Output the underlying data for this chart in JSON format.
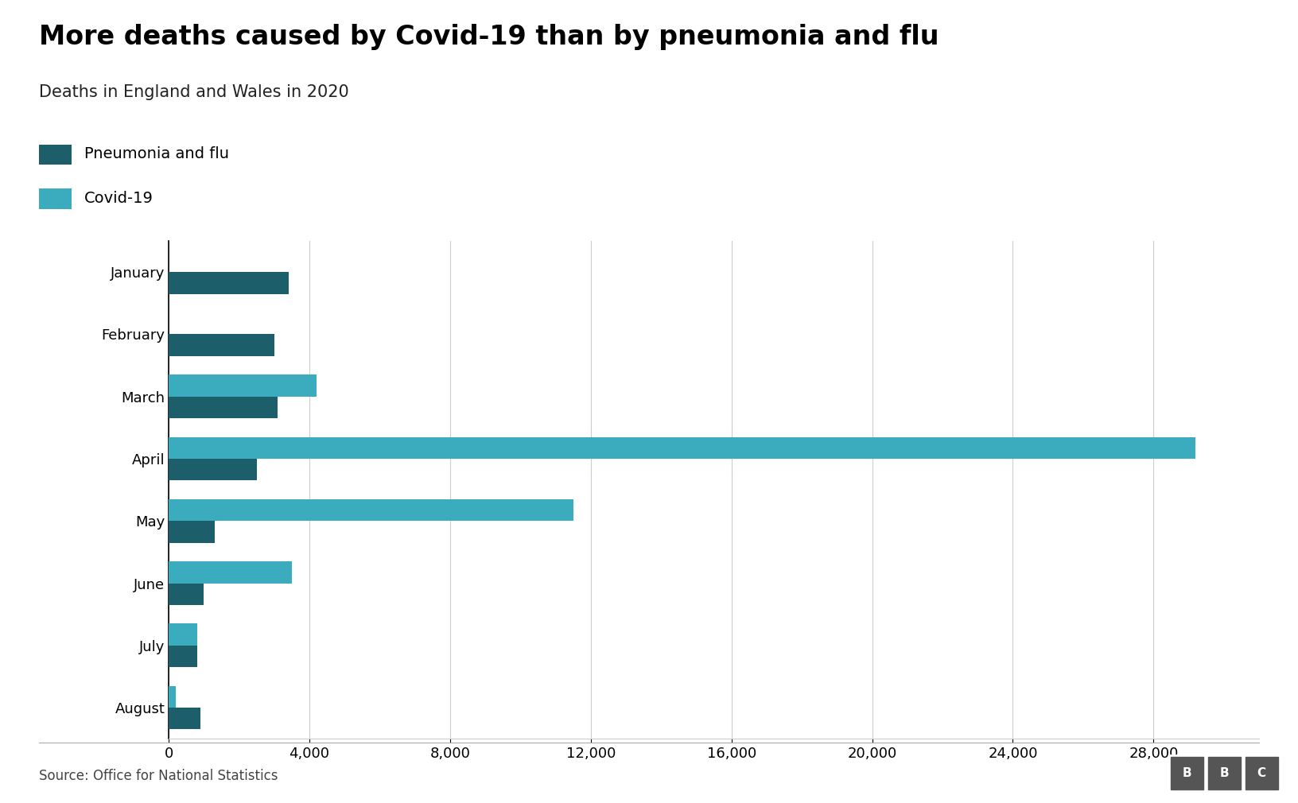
{
  "title": "More deaths caused by Covid-19 than by pneumonia and flu",
  "subtitle": "Deaths in England and Wales in 2020",
  "source": "Source: Office for National Statistics",
  "months": [
    "January",
    "February",
    "March",
    "April",
    "May",
    "June",
    "July",
    "August"
  ],
  "pneumonia_flu": [
    3400,
    3000,
    3100,
    2500,
    1300,
    1000,
    800,
    900
  ],
  "covid19": [
    0,
    0,
    4200,
    29200,
    11500,
    3500,
    800,
    200
  ],
  "color_pneumonia": "#1c5f6b",
  "color_covid": "#3aacbd",
  "background_color": "#ffffff",
  "xlim": [
    0,
    31000
  ],
  "xticks": [
    0,
    4000,
    8000,
    12000,
    16000,
    20000,
    24000,
    28000
  ],
  "bar_height": 0.35,
  "title_fontsize": 24,
  "subtitle_fontsize": 15,
  "legend_fontsize": 14,
  "tick_fontsize": 13,
  "source_fontsize": 12
}
